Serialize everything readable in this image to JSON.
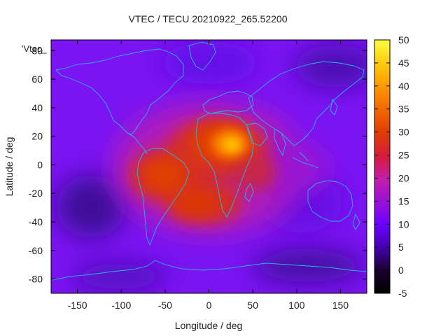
{
  "chart_data": {
    "type": "heatmap",
    "title": "VTEC / TECU 20210922_265.52200",
    "xlabel": "Longitude / deg",
    "ylabel": "Latitude / deg",
    "xlim": [
      -180,
      180
    ],
    "ylim": [
      -90,
      87.5
    ],
    "x_ticks": [
      -150,
      -100,
      -50,
      0,
      50,
      100,
      150
    ],
    "y_ticks": [
      -80,
      -60,
      -40,
      -20,
      0,
      20,
      40,
      60,
      80
    ],
    "colorbar": {
      "range": [
        -5,
        50
      ],
      "ticks": [
        -5,
        0,
        5,
        10,
        15,
        20,
        25,
        30,
        35,
        40,
        45,
        50
      ],
      "palette": [
        "#000000",
        "#3a0080",
        "#6a00ff",
        "#c21eaa",
        "#dc2d00",
        "#ff8c00",
        "#ffff40"
      ]
    },
    "series_label": "'Vtec_",
    "background_level": 9,
    "features": [
      {
        "name": "Africa/Arabia maximum",
        "lon": 25,
        "lat": 15,
        "value": 45
      },
      {
        "name": "Equatorial anomaly (Africa)",
        "lon": 0,
        "lat": 12,
        "value": 32
      },
      {
        "name": "South America crest",
        "lon": -60,
        "lat": -12,
        "value": 28
      },
      {
        "name": "South Atlantic crest",
        "lon": -20,
        "lat": -25,
        "value": 28
      },
      {
        "name": "Central Atlantic",
        "lon": -35,
        "lat": 5,
        "value": 25
      },
      {
        "name": "Indian Ocean",
        "lon": 70,
        "lat": 0,
        "value": 18
      },
      {
        "name": "Southeast Pacific low",
        "lon": -135,
        "lat": -35,
        "value": 2
      },
      {
        "name": "North Pacific low",
        "lon": 145,
        "lat": 60,
        "value": 3
      },
      {
        "name": "Antarctic low",
        "lon": 110,
        "lat": -75,
        "value": 3
      }
    ]
  }
}
